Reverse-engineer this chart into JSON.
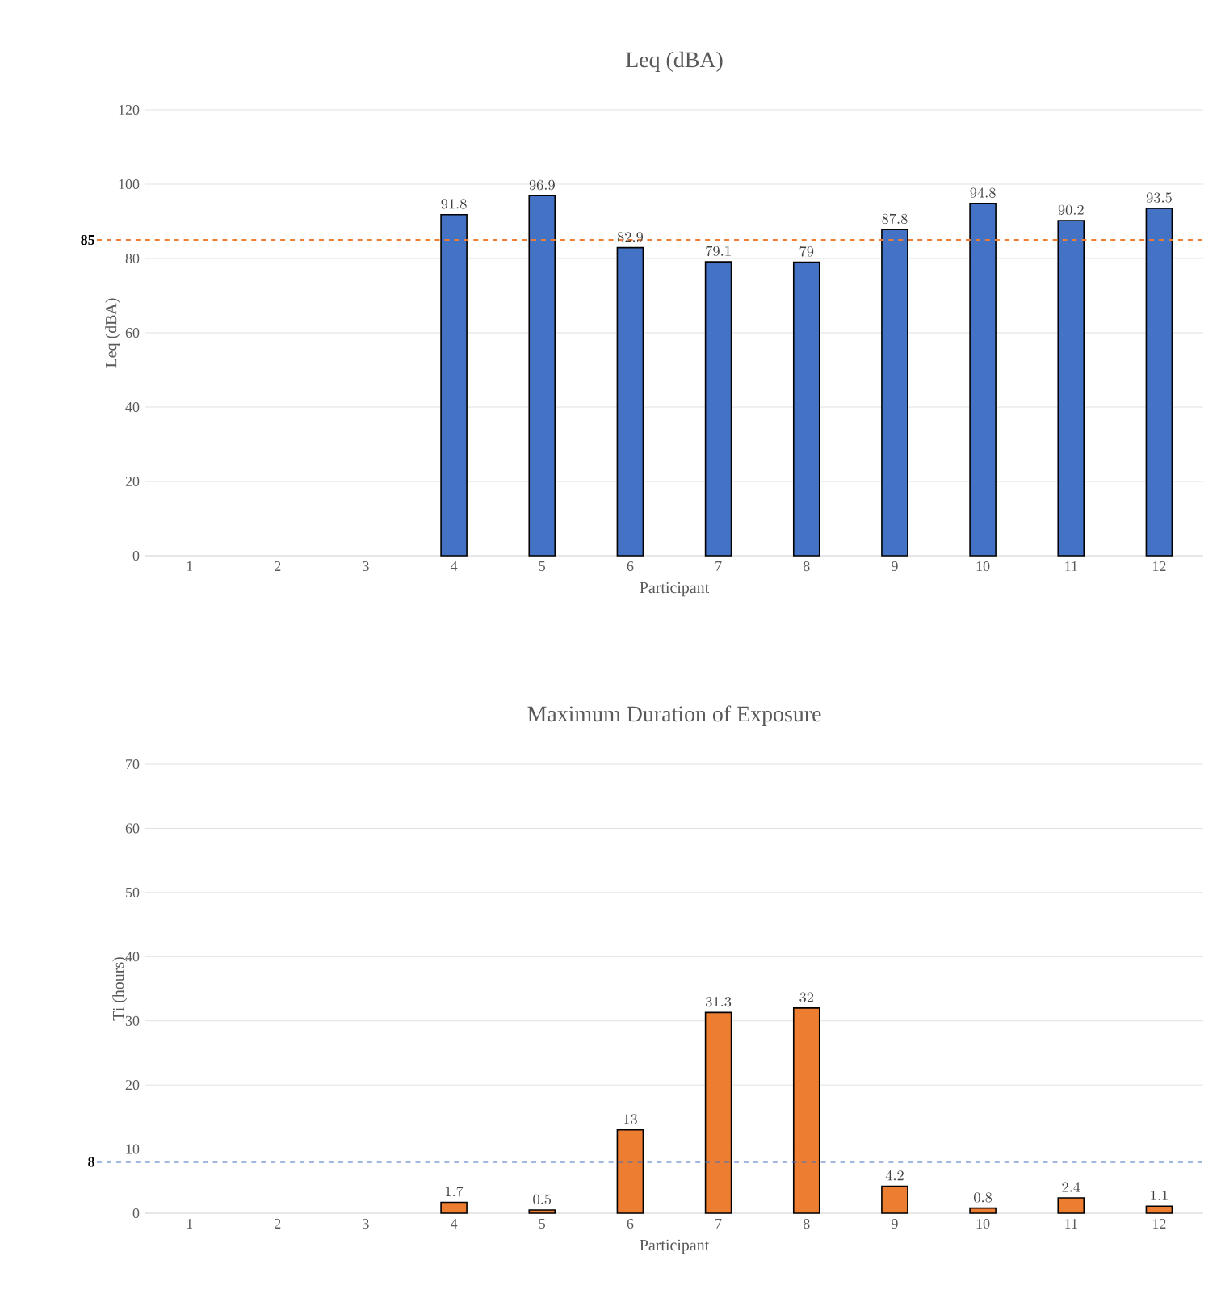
{
  "chart_data": [
    {
      "type": "bar",
      "title": "Leq (dBA)",
      "xlabel": "Participant",
      "ylabel": "Leq (dBA)",
      "categories": [
        "1",
        "2",
        "3",
        "4",
        "5",
        "6",
        "7",
        "8",
        "9",
        "10",
        "11",
        "12"
      ],
      "values": [
        null,
        null,
        null,
        91.8,
        96.9,
        82.9,
        79.1,
        79,
        87.8,
        94.8,
        90.2,
        93.5
      ],
      "color": "#4472c4",
      "ylim": [
        0,
        120
      ],
      "yticks": [
        0,
        20,
        40,
        60,
        80,
        100,
        120
      ],
      "grid": "y",
      "data_labels": true,
      "ref_lines": [
        {
          "axis": "y",
          "value": 85,
          "label": "85",
          "color": "#ed7d31",
          "line_style": "dashed"
        }
      ]
    },
    {
      "type": "bar",
      "title": "Maximum Duration of Exposure",
      "xlabel": "Participant",
      "ylabel": "Ti (hours)",
      "categories": [
        "1",
        "2",
        "3",
        "4",
        "5",
        "6",
        "7",
        "8",
        "9",
        "10",
        "11",
        "12"
      ],
      "values": [
        null,
        null,
        null,
        1.7,
        0.5,
        13,
        31.3,
        32,
        4.2,
        0.8,
        2.4,
        1.1
      ],
      "color": "#ed7d31",
      "ylim": [
        0,
        70
      ],
      "yticks": [
        0,
        10,
        20,
        30,
        40,
        50,
        60,
        70
      ],
      "grid": "y",
      "data_labels": true,
      "ref_lines": [
        {
          "axis": "y",
          "value": 8,
          "label": "8",
          "color": "#4472c4",
          "line_style": "dashed"
        }
      ]
    }
  ]
}
